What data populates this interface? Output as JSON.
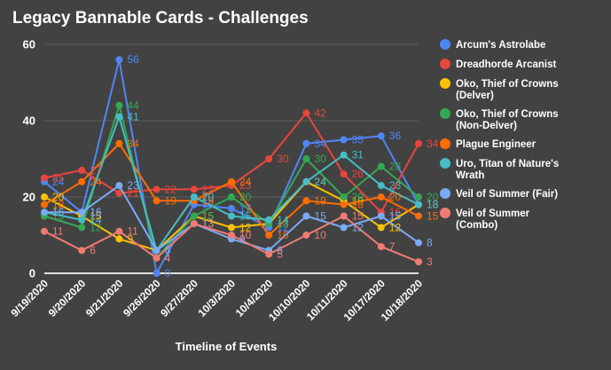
{
  "chart_data": {
    "type": "line",
    "title": "Legacy Bannable Cards - Challenges",
    "xlabel": "Timeline of Events",
    "ylabel": "",
    "ylim": [
      0,
      60
    ],
    "yticks": [
      "0",
      "20",
      "40",
      "60"
    ],
    "grid": true,
    "legend_position": "right",
    "categories": [
      "9/19/2020",
      "9/20/2020",
      "9/21/2020",
      "9/26/2020",
      "9/27/2020",
      "10/3/2020",
      "10/4/2020",
      "10/10/2020",
      "10/11/2020",
      "10/17/2020",
      "10/18/2020"
    ],
    "series": [
      {
        "name": "Arcum's Astrolabe",
        "legend_lines": [
          "Arcum's Astrolabe"
        ],
        "color": "#4f86f7",
        "values": [
          24,
          16,
          56,
          0,
          18,
          17,
          12,
          34,
          35,
          36,
          18
        ]
      },
      {
        "name": "Dreadhorde Arcanist",
        "legend_lines": [
          "Dreadhorde Arcanist"
        ],
        "color": "#e8453c",
        "values": [
          25,
          27,
          21,
          22,
          22,
          23,
          30,
          42,
          26,
          16,
          34
        ]
      },
      {
        "name": "Oko, Thief of Crowns (Delver)",
        "legend_lines": [
          "Oko, Thief of Crowns",
          "(Delver)"
        ],
        "color": "#fbc105",
        "values": [
          20,
          15,
          9,
          6,
          15,
          12,
          13,
          24,
          19,
          12,
          18
        ]
      },
      {
        "name": "Oko, Thief of Crowns (Non-Delver)",
        "legend_lines": [
          "Oko, Thief of Crowns",
          "(Non-Delver)"
        ],
        "color": "#34a853",
        "values": [
          15,
          12,
          44,
          4,
          15,
          20,
          13,
          30,
          20,
          28,
          20
        ]
      },
      {
        "name": "Plague Engineer",
        "legend_lines": [
          "Plague Engineer"
        ],
        "color": "#ff6d01",
        "values": [
          18,
          24,
          34,
          19,
          19,
          24,
          10,
          19,
          18,
          20,
          15
        ]
      },
      {
        "name": "Uro, Titan of Nature's Wrath",
        "legend_lines": [
          "Uro, Titan of Nature's",
          "Wrath"
        ],
        "color": "#46bdc6",
        "values": [
          16,
          14,
          41,
          6,
          20,
          15,
          14,
          24,
          31,
          23,
          18
        ]
      },
      {
        "name": "Veil of Summer (Fair)",
        "legend_lines": [
          "Veil of Summer (Fair)"
        ],
        "color": "#7baaf7",
        "values": [
          16,
          16,
          23,
          6,
          13,
          9,
          6,
          15,
          12,
          15,
          8
        ]
      },
      {
        "name": "Veil of Summer (Combo)",
        "legend_lines": [
          "Veil of Summer",
          "(Combo)"
        ],
        "color": "#f07b72",
        "values": [
          11,
          6,
          11,
          4,
          13,
          10,
          5,
          10,
          15,
          7,
          3
        ]
      }
    ]
  }
}
